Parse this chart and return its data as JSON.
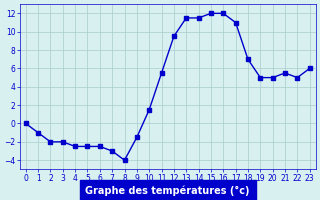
{
  "x": [
    0,
    1,
    2,
    3,
    4,
    5,
    6,
    7,
    8,
    9,
    10,
    11,
    12,
    13,
    14,
    15,
    16,
    17,
    18,
    19,
    20,
    21,
    22,
    23
  ],
  "y": [
    0,
    -1,
    -2,
    -2,
    -2.5,
    -2.5,
    -2.5,
    -3,
    -4,
    -1.5,
    1.5,
    5.5,
    9.5,
    11.5,
    11.5,
    12,
    12,
    11,
    7,
    5,
    5,
    5.5,
    5,
    6
  ],
  "line_color": "#0000cc",
  "marker": "s",
  "marker_size": 2.5,
  "background_color": "#d8f0f0",
  "grid_color": "#aacccc",
  "xlabel": "Graphe des températures (°c)",
  "xlabel_color": "#ffffff",
  "xlabel_bg": "#0000cc",
  "xlim": [
    -0.5,
    23.5
  ],
  "ylim": [
    -5,
    13
  ],
  "yticks": [
    -4,
    -2,
    0,
    2,
    4,
    6,
    8,
    10,
    12
  ],
  "xticks": [
    0,
    1,
    2,
    3,
    4,
    5,
    6,
    7,
    8,
    9,
    10,
    11,
    12,
    13,
    14,
    15,
    16,
    17,
    18,
    19,
    20,
    21,
    22,
    23
  ],
  "tick_color": "#0000cc",
  "tick_fontsize": 5.5,
  "xlabel_fontsize": 7
}
